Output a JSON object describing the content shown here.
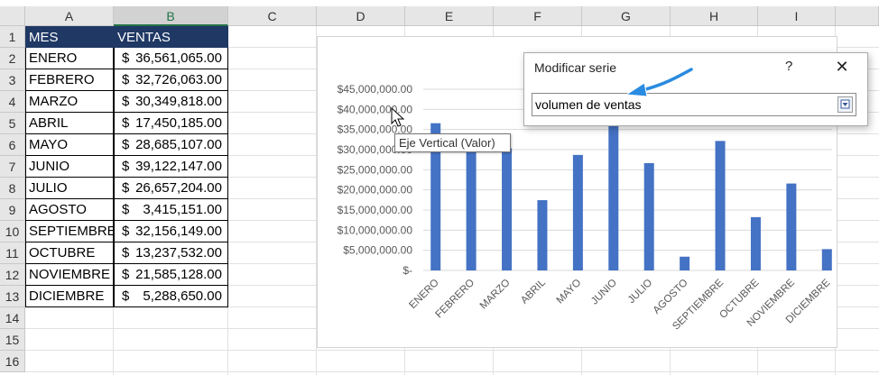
{
  "sheet": {
    "columns": [
      "A",
      "B",
      "C",
      "D",
      "E",
      "F",
      "G",
      "H",
      "I"
    ],
    "rows": [
      "1",
      "2",
      "3",
      "4",
      "5",
      "6",
      "7",
      "8",
      "9",
      "10",
      "11",
      "12",
      "13",
      "14",
      "15",
      "16"
    ],
    "header": {
      "a": "MES",
      "b": "VENTAS"
    },
    "data": [
      {
        "mes": "ENERO",
        "cur": "$",
        "val": "36,561,065.00"
      },
      {
        "mes": "FEBRERO",
        "cur": "$",
        "val": "32,726,063.00"
      },
      {
        "mes": "MARZO",
        "cur": "$",
        "val": "30,349,818.00"
      },
      {
        "mes": "ABRIL",
        "cur": "$",
        "val": "17,450,185.00"
      },
      {
        "mes": "MAYO",
        "cur": "$",
        "val": "28,685,107.00"
      },
      {
        "mes": "JUNIO",
        "cur": "$",
        "val": "39,122,147.00"
      },
      {
        "mes": "JULIO",
        "cur": "$",
        "val": "26,657,204.00"
      },
      {
        "mes": "AGOSTO",
        "cur": "$",
        "val": "3,415,151.00"
      },
      {
        "mes": "SEPTIEMBRE",
        "cur": "$",
        "val": "32,156,149.00"
      },
      {
        "mes": "OCTUBRE",
        "cur": "$",
        "val": "13,237,532.00"
      },
      {
        "mes": "NOVIEMBRE",
        "cur": "$",
        "val": "21,585,128.00"
      },
      {
        "mes": "DICIEMBRE",
        "cur": "$",
        "val": "5,288,650.00"
      }
    ]
  },
  "chart_data": {
    "type": "bar",
    "categories": [
      "ENERO",
      "FEBRERO",
      "MARZO",
      "ABRIL",
      "MAYO",
      "JUNIO",
      "JULIO",
      "AGOSTO",
      "SEPTIEMBRE",
      "OCTUBRE",
      "NOVIEMBRE",
      "DICIEMBRE"
    ],
    "values": [
      36561065,
      32726063,
      30349818,
      17450185,
      28685107,
      39122147,
      26657204,
      3415151,
      32156149,
      13237532,
      21585128,
      5288650
    ],
    "ylim": [
      0,
      45000000
    ],
    "ytick_labels": [
      "$-",
      "$5,000,000.00",
      "$10,000,000.00",
      "$15,000,000.00",
      "$20,000,000.00",
      "$25,000,000.00",
      "$30,000,000.00",
      "$35,000,000.00",
      "$40,000,000.00",
      "$45,000,000.00"
    ],
    "grid": true,
    "bar_color": "#4472c4"
  },
  "tooltip": {
    "text": "Eje Vertical (Valor)"
  },
  "dialog": {
    "title": "Modificar serie",
    "help": "?",
    "close": "✕",
    "series_name_value": "volumen de ventas"
  },
  "colors": {
    "header_fill": "#1f3864",
    "accent": "#217346",
    "arrow": "#2a8be0"
  }
}
